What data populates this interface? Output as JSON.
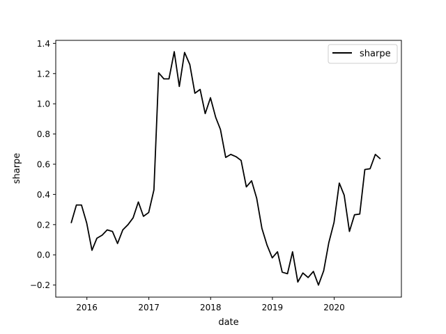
{
  "chart_data": {
    "type": "line",
    "title": "",
    "xlabel": "date",
    "ylabel": "sharpe",
    "grid": false,
    "legend": {
      "position": "top-right",
      "entries": [
        "sharpe"
      ]
    },
    "x_ticks": [
      "2016",
      "2017",
      "2018",
      "2019",
      "2020"
    ],
    "y_ticks": [
      "1.4",
      "1.2",
      "1.0",
      "0.8",
      "0.6",
      "0.4",
      "0.2",
      "0.0",
      "−0.2"
    ],
    "xlim": [
      "2015-07-01",
      "2021-02-01"
    ],
    "ylim": [
      -0.28,
      1.42
    ],
    "series": [
      {
        "name": "sharpe",
        "color": "#000000",
        "x": [
          "2015-09-30",
          "2015-10-31",
          "2015-11-30",
          "2015-12-31",
          "2016-01-31",
          "2016-02-29",
          "2016-03-31",
          "2016-04-30",
          "2016-05-31",
          "2016-06-30",
          "2016-07-31",
          "2016-08-31",
          "2016-09-30",
          "2016-10-31",
          "2016-11-30",
          "2016-12-31",
          "2017-01-31",
          "2017-02-28",
          "2017-03-31",
          "2017-04-30",
          "2017-05-31",
          "2017-06-30",
          "2017-07-31",
          "2017-08-31",
          "2017-09-30",
          "2017-10-31",
          "2017-11-30",
          "2017-12-31",
          "2018-01-31",
          "2018-02-28",
          "2018-03-31",
          "2018-04-30",
          "2018-05-31",
          "2018-06-30",
          "2018-07-31",
          "2018-08-31",
          "2018-09-30",
          "2018-10-31",
          "2018-11-30",
          "2018-12-31",
          "2019-01-31",
          "2019-02-28",
          "2019-03-31",
          "2019-04-30",
          "2019-05-31",
          "2019-06-30",
          "2019-07-31",
          "2019-08-31",
          "2019-09-30",
          "2019-10-31",
          "2019-11-30",
          "2019-12-31",
          "2020-01-31",
          "2020-02-29",
          "2020-03-31",
          "2020-04-30",
          "2020-05-31",
          "2020-06-30",
          "2020-07-31",
          "2020-08-31",
          "2020-09-30"
        ],
        "y": [
          0.21,
          0.33,
          0.33,
          0.21,
          0.03,
          0.11,
          0.13,
          0.165,
          0.155,
          0.075,
          0.165,
          0.2,
          0.245,
          0.35,
          0.255,
          0.28,
          0.43,
          1.205,
          1.165,
          1.165,
          1.345,
          1.115,
          1.34,
          1.26,
          1.07,
          1.095,
          0.935,
          1.04,
          0.91,
          0.83,
          0.645,
          0.665,
          0.65,
          0.625,
          0.45,
          0.49,
          0.375,
          0.175,
          0.065,
          -0.02,
          0.02,
          -0.115,
          -0.125,
          0.02,
          -0.18,
          -0.12,
          -0.15,
          -0.11,
          -0.2,
          -0.105,
          0.08,
          0.215,
          0.475,
          0.395,
          0.155,
          0.265,
          0.27,
          0.565,
          0.57,
          0.665,
          0.635
        ]
      }
    ]
  }
}
